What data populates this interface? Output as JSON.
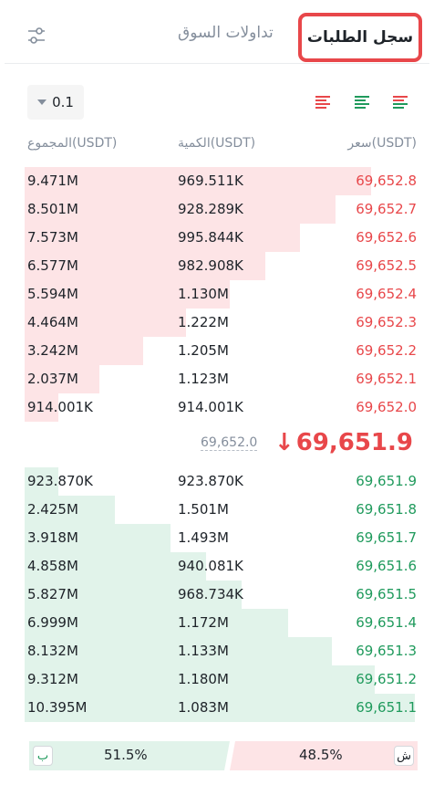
{
  "header": {
    "tab_orderbook": "سجل الطلبات",
    "tab_market_trades": "تداولات السوق",
    "settings_icon": "sliders-icon"
  },
  "controls": {
    "precision": "0.1",
    "view_icons": [
      "asks-only-icon",
      "bids-only-icon",
      "both-sides-icon"
    ]
  },
  "columns": {
    "total": "المجموع(USDT)",
    "quantity": "الكمية(USDT)",
    "price": "سعر(USDT)"
  },
  "asks": [
    {
      "total": "9.471M",
      "qty": "969.511K",
      "price": "69,652.8",
      "depth": 0.88
    },
    {
      "total": "8.501M",
      "qty": "928.289K",
      "price": "69,652.7",
      "depth": 0.79
    },
    {
      "total": "7.573M",
      "qty": "995.844K",
      "price": "69,652.6",
      "depth": 0.7
    },
    {
      "total": "6.577M",
      "qty": "982.908K",
      "price": "69,652.5",
      "depth": 0.61
    },
    {
      "total": "5.594M",
      "qty": "1.130M",
      "price": "69,652.4",
      "depth": 0.52
    },
    {
      "total": "4.464M",
      "qty": "1.222M",
      "price": "69,652.3",
      "depth": 0.41
    },
    {
      "total": "3.242M",
      "qty": "1.205M",
      "price": "69,652.2",
      "depth": 0.3
    },
    {
      "total": "2.037M",
      "qty": "1.123M",
      "price": "69,652.1",
      "depth": 0.19
    },
    {
      "total": "914.001K",
      "qty": "914.001K",
      "price": "69,652.0",
      "depth": 0.085
    }
  ],
  "mid": {
    "reference": "69,652.0",
    "last_price": "69,651.9",
    "arrow": "↓"
  },
  "bids": [
    {
      "total": "923.870K",
      "qty": "923.870K",
      "price": "69,651.9",
      "depth": 0.085
    },
    {
      "total": "2.425M",
      "qty": "1.501M",
      "price": "69,651.8",
      "depth": 0.23
    },
    {
      "total": "3.918M",
      "qty": "1.493M",
      "price": "69,651.7",
      "depth": 0.37
    },
    {
      "total": "4.858M",
      "qty": "940.081K",
      "price": "69,651.6",
      "depth": 0.46
    },
    {
      "total": "5.827M",
      "qty": "968.734K",
      "price": "69,651.5",
      "depth": 0.55
    },
    {
      "total": "6.999M",
      "qty": "1.172M",
      "price": "69,651.4",
      "depth": 0.67
    },
    {
      "total": "8.132M",
      "qty": "1.133M",
      "price": "69,651.3",
      "depth": 0.78
    },
    {
      "total": "9.312M",
      "qty": "1.180M",
      "price": "69,651.2",
      "depth": 0.89
    },
    {
      "total": "10.395M",
      "qty": "1.083M",
      "price": "69,651.1",
      "depth": 0.99
    }
  ],
  "ratio": {
    "buy_label": "ب",
    "buy_pct": "51.5%",
    "sell_pct": "48.5%",
    "sell_label": "ش"
  },
  "colors": {
    "ask": "#e8474a",
    "bid": "#1f9a5c",
    "highlight": "#e8474a"
  }
}
